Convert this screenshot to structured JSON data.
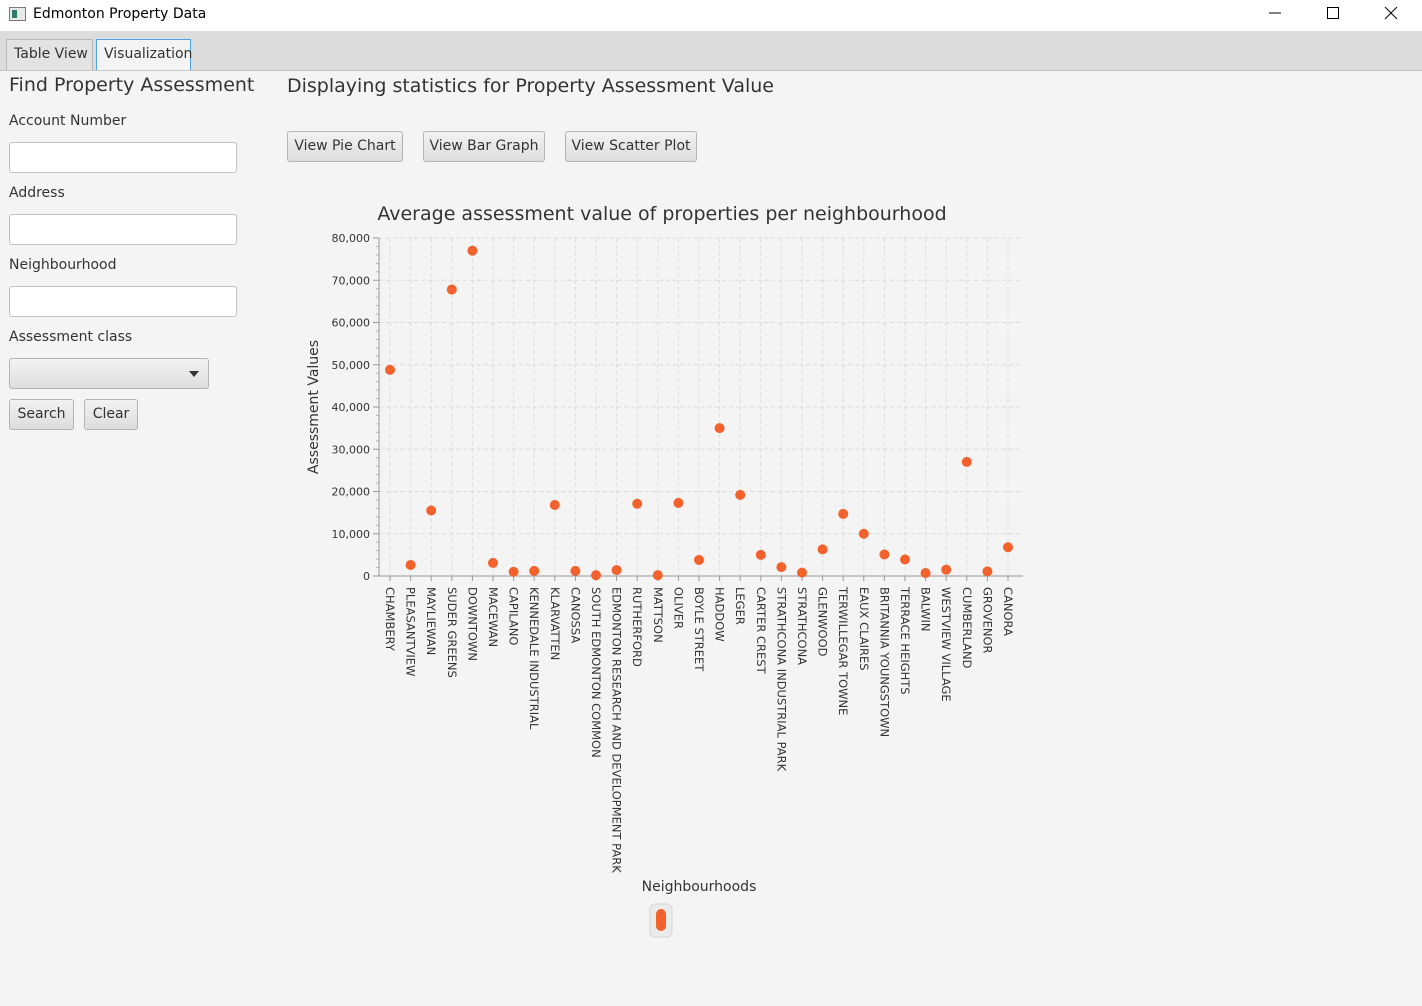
{
  "window": {
    "title": "Edmonton Property Data"
  },
  "tabs": [
    {
      "label": "Table View",
      "selected": false
    },
    {
      "label": "Visualization",
      "selected": true
    }
  ],
  "search_panel": {
    "heading": "Find Property Assessment",
    "account_label": "Account Number",
    "account_value": "",
    "address_label": "Address",
    "address_value": "",
    "neighbourhood_label": "Neighbourhood",
    "neighbourhood_value": "",
    "class_label": "Assessment class",
    "class_value": "",
    "search_button": "Search",
    "clear_button": "Clear"
  },
  "visualization": {
    "heading": "Displaying statistics for Property Assessment Value",
    "pie_button": "View Pie Chart",
    "bar_button": "View Bar Graph",
    "scatter_button": "View Scatter Plot"
  },
  "chart_data": {
    "type": "scatter",
    "title": "Average assessment value of properties per neighbourhood",
    "xlabel": "Neighbourhoods",
    "ylabel": "Assessment Values",
    "ylim": [
      0,
      80000
    ],
    "ytick_step": 10000,
    "yticks": [
      "0",
      "10,000",
      "20,000",
      "30,000",
      "40,000",
      "50,000",
      "60,000",
      "70,000",
      "80,000"
    ],
    "grid": true,
    "legend": "bottom-center",
    "point_color": "#f3622d",
    "categories": [
      "CHAMBERY",
      "PLEASANTVIEW",
      "MAYLIEWAN",
      "SUDER GREENS",
      "DOWNTOWN",
      "MACEWAN",
      "CAPILANO",
      "KENNEDALE INDUSTRIAL",
      "KLARVATTEN",
      "CANOSSA",
      "SOUTH EDMONTON COMMON",
      "EDMONTON RESEARCH AND DEVELOPMENT PARK",
      "RUTHERFORD",
      "MATTSON",
      "OLIVER",
      "BOYLE STREET",
      "HADDOW",
      "LEGER",
      "CARTER CREST",
      "STRATHCONA INDUSTRIAL PARK",
      "STRATHCONA",
      "GLENWOOD",
      "TERWILLEGAR TOWNE",
      "EAUX CLAIRES",
      "BRITANNIA YOUNGSTOWN",
      "TERRACE HEIGHTS",
      "BALWIN",
      "WESTVIEW VILLAGE",
      "CUMBERLAND",
      "GROVENOR",
      "CANORA"
    ],
    "values": [
      48800,
      2600,
      15500,
      67800,
      77000,
      3100,
      1000,
      1200,
      16800,
      1200,
      200,
      1400,
      17100,
      200,
      17300,
      3800,
      35000,
      19200,
      5000,
      2100,
      800,
      6300,
      14700,
      10000,
      5100,
      3900,
      700,
      1500,
      27000,
      1100,
      6800
    ]
  }
}
